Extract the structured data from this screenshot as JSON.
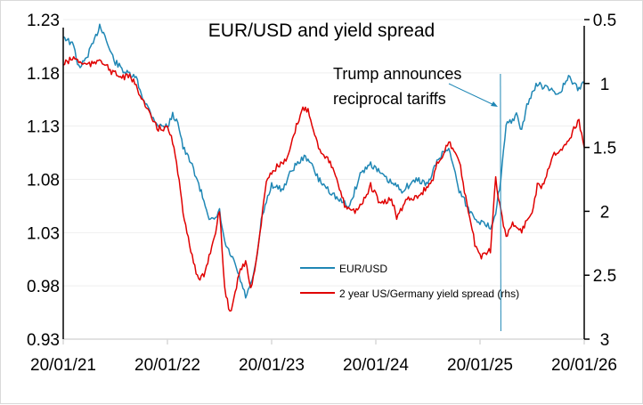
{
  "chart_data": {
    "type": "line",
    "title": "EUR/USD and yield spread",
    "xlabel": "",
    "ylabel": "",
    "x_ticks": [
      "20/01/21",
      "20/01/22",
      "20/01/23",
      "20/01/24",
      "20/01/25",
      "20/01/26"
    ],
    "x_unit": "years since 20/01/21",
    "xlim": [
      0,
      5
    ],
    "y_left": {
      "ticks": [
        "0.93",
        "0.98",
        "1.03",
        "1.08",
        "1.13",
        "1.18",
        "1.23"
      ],
      "lim": [
        0.93,
        1.23
      ]
    },
    "y_right": {
      "ticks": [
        "0.5",
        "1",
        "1.5",
        "2",
        "2.5",
        "3"
      ],
      "lim": [
        0.5,
        3
      ],
      "inverted": true
    },
    "grid": true,
    "legend_position": "bottom-center",
    "annotation": {
      "text_line1": "Trump announces",
      "text_line2": "reciprocal tariffs",
      "x": 4.2
    },
    "series": [
      {
        "name": "EUR/USD",
        "axis": "left",
        "color": "#1f87b5",
        "x": [
          0,
          0.05,
          0.1,
          0.15,
          0.2,
          0.25,
          0.3,
          0.35,
          0.4,
          0.45,
          0.5,
          0.6,
          0.7,
          0.75,
          0.85,
          0.92,
          1.0,
          1.05,
          1.1,
          1.15,
          1.2,
          1.25,
          1.3,
          1.35,
          1.4,
          1.45,
          1.5,
          1.55,
          1.6,
          1.65,
          1.7,
          1.75,
          1.8,
          1.85,
          1.9,
          1.95,
          2.0,
          2.1,
          2.2,
          2.3,
          2.35,
          2.45,
          2.55,
          2.65,
          2.75,
          2.85,
          2.95,
          3.0,
          3.1,
          3.25,
          3.4,
          3.5,
          3.6,
          3.7,
          3.8,
          3.9,
          4.0,
          4.1,
          4.15,
          4.2,
          4.25,
          4.3,
          4.35,
          4.4,
          4.45,
          4.55,
          4.65,
          4.75,
          4.85,
          4.95,
          5.0
        ],
        "y": [
          1.215,
          1.21,
          1.205,
          1.185,
          1.19,
          1.2,
          1.21,
          1.225,
          1.215,
          1.2,
          1.19,
          1.18,
          1.175,
          1.16,
          1.14,
          1.13,
          1.13,
          1.14,
          1.135,
          1.11,
          1.1,
          1.09,
          1.075,
          1.06,
          1.045,
          1.04,
          1.05,
          1.02,
          1.01,
          1.0,
          0.985,
          0.97,
          0.98,
          1.0,
          1.04,
          1.06,
          1.075,
          1.07,
          1.09,
          1.1,
          1.1,
          1.08,
          1.07,
          1.06,
          1.055,
          1.085,
          1.095,
          1.09,
          1.08,
          1.07,
          1.08,
          1.075,
          1.1,
          1.11,
          1.07,
          1.05,
          1.04,
          1.035,
          1.05,
          1.08,
          1.13,
          1.135,
          1.14,
          1.125,
          1.15,
          1.17,
          1.165,
          1.16,
          1.175,
          1.165,
          1.17
        ]
      },
      {
        "name": "2 year US/Germany yield spread (rhs)",
        "axis": "right",
        "color": "#e00000",
        "x": [
          0,
          0.1,
          0.2,
          0.3,
          0.35,
          0.45,
          0.55,
          0.65,
          0.75,
          0.8,
          0.9,
          1.0,
          1.05,
          1.1,
          1.15,
          1.2,
          1.25,
          1.3,
          1.35,
          1.45,
          1.5,
          1.55,
          1.6,
          1.7,
          1.75,
          1.8,
          1.85,
          1.9,
          1.95,
          2.05,
          2.15,
          2.25,
          2.3,
          2.35,
          2.45,
          2.55,
          2.6,
          2.7,
          2.8,
          2.9,
          2.95,
          3.05,
          3.15,
          3.2,
          3.3,
          3.35,
          3.45,
          3.55,
          3.6,
          3.65,
          3.7,
          3.8,
          3.85,
          3.95,
          4.0,
          4.05,
          4.1,
          4.15,
          4.2,
          4.25,
          4.3,
          4.4,
          4.5,
          4.55,
          4.6,
          4.7,
          4.8,
          4.85,
          4.9,
          4.95,
          5.0
        ],
        "y": [
          0.85,
          0.8,
          0.85,
          0.85,
          0.8,
          0.9,
          0.95,
          0.95,
          1.1,
          1.2,
          1.35,
          1.35,
          1.45,
          1.7,
          2.0,
          2.2,
          2.4,
          2.55,
          2.5,
          2.2,
          2.0,
          2.6,
          2.8,
          2.45,
          2.4,
          2.6,
          2.4,
          2.1,
          1.75,
          1.65,
          1.6,
          1.3,
          1.2,
          1.2,
          1.5,
          1.6,
          1.7,
          1.95,
          2.0,
          1.9,
          1.8,
          1.95,
          1.9,
          2.05,
          1.9,
          1.9,
          1.85,
          1.75,
          1.6,
          1.55,
          1.45,
          1.6,
          1.85,
          2.25,
          2.35,
          2.35,
          2.3,
          1.75,
          2.0,
          2.2,
          2.1,
          2.15,
          2.0,
          1.8,
          1.8,
          1.55,
          1.5,
          1.45,
          1.35,
          1.3,
          1.5
        ]
      }
    ]
  }
}
